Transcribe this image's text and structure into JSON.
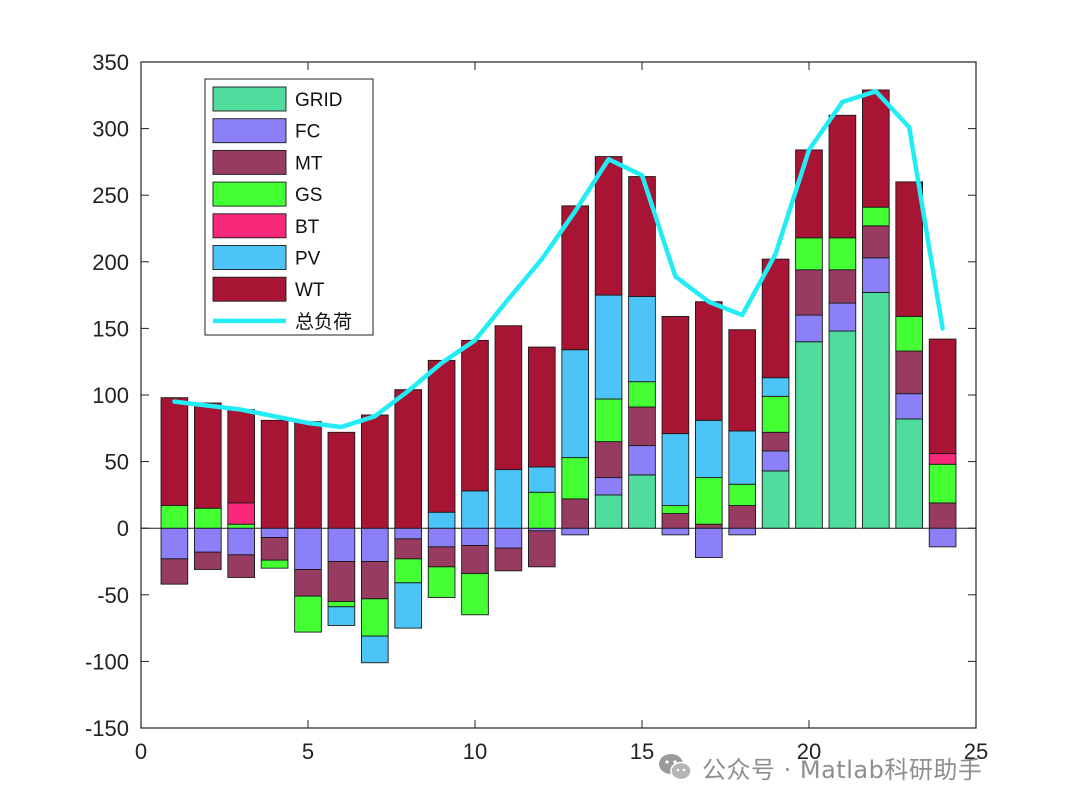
{
  "chart_data": {
    "type": "bar",
    "stacked": true,
    "x": [
      1,
      2,
      3,
      4,
      5,
      6,
      7,
      8,
      9,
      10,
      11,
      12,
      13,
      14,
      15,
      16,
      17,
      18,
      19,
      20,
      21,
      22,
      23,
      24
    ],
    "xlim": [
      0,
      25
    ],
    "ylim": [
      -150,
      350
    ],
    "xticks": [
      "0",
      "5",
      "10",
      "15",
      "20",
      "25"
    ],
    "yticks": [
      "-150",
      "-100",
      "-50",
      "0",
      "50",
      "100",
      "150",
      "200",
      "250",
      "300",
      "350"
    ],
    "legend_position": "top-left",
    "series": [
      {
        "name": "GRID",
        "color": "#50dc9c",
        "values": [
          0,
          0,
          0,
          0,
          0,
          0,
          0,
          0,
          0,
          0,
          0,
          0,
          0,
          25,
          40,
          0,
          0,
          0,
          43,
          140,
          148,
          177,
          82,
          0
        ]
      },
      {
        "name": "FC",
        "color": "#8c80f8",
        "values": [
          -23,
          -18,
          -20,
          -7,
          -31,
          -25,
          -25,
          -8,
          -14,
          -13,
          -15,
          -2,
          -5,
          13,
          22,
          -5,
          -22,
          -5,
          15,
          20,
          21,
          26,
          19,
          -14
        ]
      },
      {
        "name": "MT",
        "color": "#973c60",
        "values": [
          -19,
          -13,
          -17,
          -17,
          -20,
          -30,
          -28,
          -15,
          -15,
          -21,
          -17,
          -27,
          22,
          27,
          29,
          11,
          3,
          17,
          14,
          34,
          25,
          24,
          32,
          19
        ]
      },
      {
        "name": "GS",
        "color": "#44ff33",
        "values": [
          17,
          15,
          3,
          -6,
          -27,
          -4,
          -28,
          -18,
          -23,
          -31,
          0,
          27,
          31,
          32,
          19,
          6,
          35,
          16,
          27,
          24,
          24,
          14,
          26,
          29
        ]
      },
      {
        "name": "BT",
        "color": "#f8287a",
        "values": [
          0,
          0,
          16,
          0,
          0,
          0,
          0,
          0,
          0,
          0,
          0,
          0,
          0,
          0,
          0,
          0,
          0,
          0,
          0,
          0,
          0,
          0,
          0,
          8
        ]
      },
      {
        "name": "PV",
        "color": "#4cc4f8",
        "values": [
          0,
          0,
          0,
          0,
          0,
          -14,
          -20,
          -34,
          12,
          28,
          44,
          19,
          81,
          78,
          64,
          54,
          43,
          40,
          14,
          0,
          0,
          0,
          0,
          0
        ]
      },
      {
        "name": "WT",
        "color": "#a81434",
        "values": [
          81,
          79,
          70,
          81,
          80,
          72,
          85,
          104,
          114,
          113,
          108,
          90,
          108,
          104,
          90,
          88,
          89,
          76,
          89,
          66,
          92,
          88,
          101,
          86
        ]
      },
      {
        "name": "总负荷",
        "color": "#22ecf4",
        "type": "line",
        "values": [
          95,
          92,
          89,
          84,
          79,
          76,
          84,
          103,
          124,
          141,
          172,
          202,
          238,
          277,
          265,
          189,
          170,
          160,
          206,
          284,
          320,
          328,
          301,
          150
        ]
      }
    ]
  },
  "watermark": {
    "text": "公众号 · Matlab科研助手"
  }
}
